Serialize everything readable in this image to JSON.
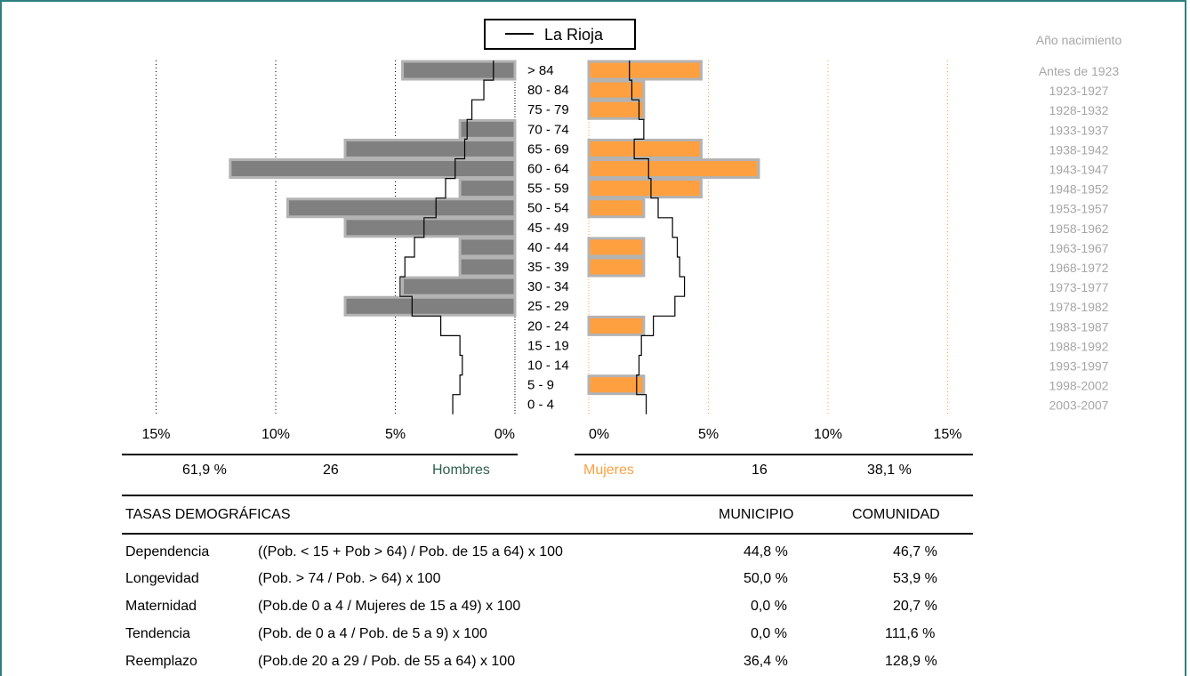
{
  "legend": {
    "label": "La Rioja"
  },
  "birth_year_title": "Año nacimiento",
  "birth_years": [
    "Antes de 1923",
    "1923-1927",
    "1928-1932",
    "1933-1937",
    "1938-1942",
    "1943-1947",
    "1948-1952",
    "1953-1957",
    "1958-1962",
    "1963-1967",
    "1968-1972",
    "1973-1977",
    "1978-1982",
    "1983-1987",
    "1988-1992",
    "1993-1997",
    "1998-2002",
    "2003-2007"
  ],
  "chart_data": {
    "type": "bar",
    "orientation": "horizontal-pyramid",
    "categories": [
      "> 84",
      "80 - 84",
      "75 - 79",
      "70 - 74",
      "65 - 69",
      "60 - 64",
      "55 - 59",
      "50 - 54",
      "45 - 49",
      "40 - 44",
      "35 - 39",
      "30 - 34",
      "25 - 29",
      "20 - 24",
      "15 - 19",
      "10 - 14",
      "5 - 9",
      "0 - 4"
    ],
    "series": [
      {
        "name": "Hombres",
        "color": "#808080",
        "values": [
          4.7,
          0,
          0,
          2.3,
          7.1,
          11.9,
          2.3,
          9.5,
          7.1,
          2.3,
          2.3,
          4.7,
          7.1,
          0,
          0,
          0,
          0,
          0
        ]
      },
      {
        "name": "Mujeres",
        "color": "#ffa040",
        "values": [
          4.7,
          2.3,
          2.3,
          0,
          4.7,
          7.1,
          4.7,
          2.3,
          0,
          2.3,
          2.3,
          0,
          0,
          2.3,
          0,
          0,
          2.3,
          0
        ]
      }
    ],
    "reference": {
      "name": "La Rioja",
      "hombres": [
        0.9,
        1.3,
        1.8,
        2.0,
        2.1,
        2.5,
        2.9,
        3.3,
        3.8,
        4.2,
        4.6,
        4.8,
        4.3,
        3.1,
        2.3,
        2.2,
        2.3,
        2.6
      ],
      "mujeres": [
        1.7,
        1.8,
        2.1,
        2.3,
        1.9,
        2.5,
        2.6,
        2.9,
        3.5,
        3.7,
        3.8,
        4.0,
        3.6,
        2.7,
        2.2,
        2.1,
        2.0,
        2.4
      ]
    },
    "x_ticks_left": [
      "15%",
      "10%",
      "5%",
      "0%"
    ],
    "x_ticks_right": [
      "0%",
      "5%",
      "10%",
      "15%"
    ],
    "xlim": [
      0,
      15
    ]
  },
  "totals": {
    "hombres_pct": "61,9 %",
    "hombres_count": "26",
    "hombres_label": "Hombres",
    "mujeres_label": "Mujeres",
    "mujeres_count": "16",
    "mujeres_pct": "38,1 %"
  },
  "rates": {
    "title": "TASAS DEMOGRÁFICAS",
    "col_municipio": "MUNICIPIO",
    "col_comunidad": "COMUNIDAD",
    "rows": [
      {
        "name": "Dependencia",
        "formula": "((Pob. < 15 + Pob > 64) / Pob. de 15 a 64) x 100",
        "municipio": "44,8 %",
        "comunidad": "46,7 %"
      },
      {
        "name": "Longevidad",
        "formula": "(Pob. > 74 / Pob. > 64) x 100",
        "municipio": "50,0 %",
        "comunidad": "53,9 %"
      },
      {
        "name": "Maternidad",
        "formula": "(Pob.de 0 a 4 / Mujeres de 15 a 49) x 100",
        "municipio": "0,0 %",
        "comunidad": "20,7 %"
      },
      {
        "name": "Tendencia",
        "formula": "(Pob. de 0 a 4 / Pob. de 5 a 9) x 100",
        "municipio": "0,0 %",
        "comunidad": "111,6 %"
      },
      {
        "name": "Reemplazo",
        "formula": "(Pob.de 20 a 29 / Pob. de 55 a 64) x 100",
        "municipio": "36,4 %",
        "comunidad": "128,9 %"
      }
    ]
  },
  "colors": {
    "frame": "#2e7f7f",
    "hombres_text": "#2e5f4f",
    "mujeres_text": "#ffa040",
    "bar_male": "#808080",
    "bar_female": "#ffa040",
    "bar_outline": "#b3b3b3"
  }
}
